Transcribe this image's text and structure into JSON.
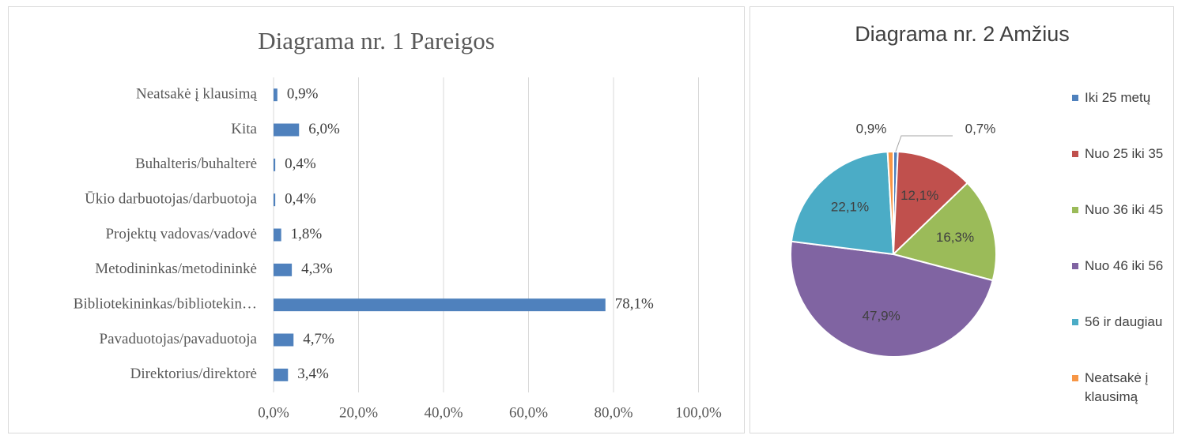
{
  "chart_data": [
    {
      "type": "bar",
      "orientation": "horizontal",
      "title": "Diagrama nr. 1 Pareigos",
      "categories": [
        "Neatsakė į klausimą",
        "Kita",
        "Buhalteris/buhalterė",
        "Ūkio darbuotojas/darbuotoja",
        "Projektų vadovas/vadovė",
        "Metodininkas/metodininkė",
        "Bibliotekininkas/bibliotekin…",
        "Pavaduotojas/pavaduotoja",
        "Direktorius/direktorė"
      ],
      "values": [
        0.9,
        6.0,
        0.4,
        0.4,
        1.8,
        4.3,
        78.1,
        4.7,
        3.4
      ],
      "value_labels": [
        "0,9%",
        "6,0%",
        "0,4%",
        "0,4%",
        "1,8%",
        "4,3%",
        "78,1%",
        "4,7%",
        "3,4%"
      ],
      "color": "#4f81bd",
      "xlim": [
        0,
        100
      ],
      "xticks": [
        {
          "value": 0,
          "label": "0,0%"
        },
        {
          "value": 20,
          "label": "20,0%"
        },
        {
          "value": 40,
          "label": "40,0%"
        },
        {
          "value": 60,
          "label": "60,0%"
        },
        {
          "value": 80,
          "label": "80,0%"
        },
        {
          "value": 100,
          "label": "100,0%"
        }
      ],
      "grid": true
    },
    {
      "type": "pie",
      "title": "Diagrama nr. 2 Amžius",
      "categories": [
        "Iki 25 metų",
        "Nuo 25 iki 35",
        "Nuo 36 iki 45",
        "Nuo 46 iki 56",
        "56 ir daugiau",
        "Neatsakė į klausimą"
      ],
      "values": [
        0.7,
        12.1,
        16.3,
        47.9,
        22.1,
        0.9
      ],
      "value_labels": [
        "0,7%",
        "12,1%",
        "16,3%",
        "47,9%",
        "22,1%",
        "0,9%"
      ],
      "colors": [
        "#4f81bd",
        "#c0504d",
        "#9bbb59",
        "#8064a2",
        "#4bacc6",
        "#f79646"
      ],
      "legend": "right"
    }
  ]
}
